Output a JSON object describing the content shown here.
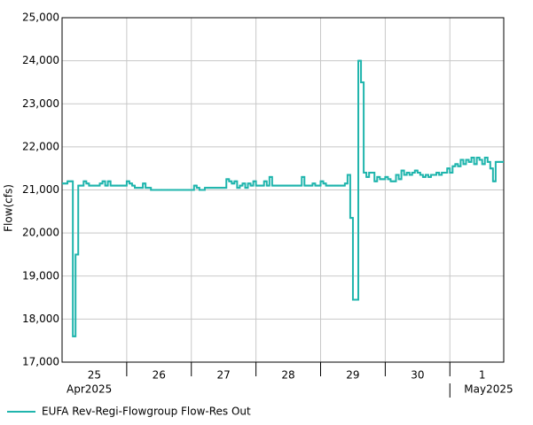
{
  "chart_data": {
    "type": "step",
    "ylabel": "Flow(cfs)",
    "ylim": [
      17000,
      25000
    ],
    "yticks": [
      {
        "value": 17000,
        "label": "17,000"
      },
      {
        "value": 18000,
        "label": "18,000"
      },
      {
        "value": 19000,
        "label": "19,000"
      },
      {
        "value": 20000,
        "label": "20,000"
      },
      {
        "value": 21000,
        "label": "21,000"
      },
      {
        "value": 22000,
        "label": "22,000"
      },
      {
        "value": 23000,
        "label": "23,000"
      },
      {
        "value": 24000,
        "label": "24,000"
      },
      {
        "value": 25000,
        "label": "25,000"
      }
    ],
    "xlim": [
      0,
      164
    ],
    "xticks": [
      {
        "value": 12,
        "label": "25"
      },
      {
        "value": 36,
        "label": "26"
      },
      {
        "value": 60,
        "label": "27"
      },
      {
        "value": 84,
        "label": "28"
      },
      {
        "value": 108,
        "label": "29"
      },
      {
        "value": 132,
        "label": "30"
      },
      {
        "value": 156,
        "label": "1"
      }
    ],
    "xgrid": [
      24,
      48,
      72,
      96,
      120,
      144
    ],
    "month_labels": [
      {
        "value": 0,
        "label": "Apr2025"
      },
      {
        "value": 144,
        "label": "May2025"
      }
    ],
    "grid": true,
    "series": [
      {
        "name": "EUFA Rev-Regi-Flowgroup Flow-Res Out",
        "color": "#20b5ad",
        "x": [
          0,
          1,
          2,
          3,
          4,
          5,
          6,
          7,
          8,
          9,
          10,
          11,
          12,
          13,
          14,
          15,
          16,
          17,
          18,
          19,
          20,
          21,
          22,
          23,
          24,
          25,
          26,
          27,
          28,
          29,
          30,
          31,
          32,
          33,
          34,
          35,
          36,
          37,
          38,
          39,
          40,
          41,
          42,
          43,
          44,
          45,
          46,
          47,
          48,
          49,
          50,
          51,
          52,
          53,
          54,
          55,
          56,
          57,
          58,
          59,
          60,
          61,
          62,
          63,
          64,
          65,
          66,
          67,
          68,
          69,
          70,
          71,
          72,
          73,
          74,
          75,
          76,
          77,
          78,
          79,
          80,
          81,
          82,
          83,
          84,
          85,
          86,
          87,
          88,
          89,
          90,
          91,
          92,
          93,
          94,
          95,
          96,
          97,
          98,
          99,
          100,
          101,
          102,
          103,
          104,
          105,
          106,
          107,
          108,
          109,
          110,
          111,
          112,
          113,
          114,
          115,
          116,
          117,
          118,
          119,
          120,
          121,
          122,
          123,
          124,
          125,
          126,
          127,
          128,
          129,
          130,
          131,
          132,
          133,
          134,
          135,
          136,
          137,
          138,
          139,
          140,
          141,
          142,
          143,
          144,
          145,
          146,
          147,
          148,
          149,
          150,
          151,
          152,
          153,
          154,
          155,
          156,
          157,
          158,
          159,
          160,
          161,
          162,
          163
        ],
        "values": [
          21150,
          21150,
          21200,
          21200,
          17600,
          19500,
          21100,
          21100,
          21200,
          21150,
          21100,
          21100,
          21100,
          21100,
          21150,
          21200,
          21100,
          21200,
          21100,
          21100,
          21100,
          21100,
          21100,
          21100,
          21200,
          21150,
          21100,
          21050,
          21050,
          21050,
          21150,
          21050,
          21050,
          21000,
          21000,
          21000,
          21000,
          21000,
          21000,
          21000,
          21000,
          21000,
          21000,
          21000,
          21000,
          21000,
          21000,
          21000,
          21000,
          21100,
          21050,
          21000,
          21000,
          21050,
          21050,
          21050,
          21050,
          21050,
          21050,
          21050,
          21050,
          21250,
          21200,
          21150,
          21200,
          21050,
          21100,
          21150,
          21050,
          21150,
          21100,
          21200,
          21100,
          21100,
          21100,
          21200,
          21100,
          21300,
          21100,
          21100,
          21100,
          21100,
          21100,
          21100,
          21100,
          21100,
          21100,
          21100,
          21100,
          21300,
          21100,
          21100,
          21100,
          21150,
          21100,
          21100,
          21200,
          21150,
          21100,
          21100,
          21100,
          21100,
          21100,
          21100,
          21100,
          21150,
          21350,
          20350,
          18450,
          18450,
          24000,
          23500,
          21400,
          21300,
          21400,
          21400,
          21200,
          21300,
          21250,
          21250,
          21300,
          21250,
          21200,
          21200,
          21350,
          21250,
          21450,
          21350,
          21400,
          21350,
          21400,
          21450,
          21400,
          21350,
          21300,
          21350,
          21300,
          21350,
          21350,
          21400,
          21350,
          21400,
          21400,
          21500,
          21400,
          21550,
          21600,
          21550,
          21700,
          21600,
          21700,
          21650,
          21750,
          21600,
          21750,
          21700,
          21600,
          21750,
          21650,
          21500,
          21200,
          21650,
          21650,
          21650
        ]
      }
    ]
  }
}
